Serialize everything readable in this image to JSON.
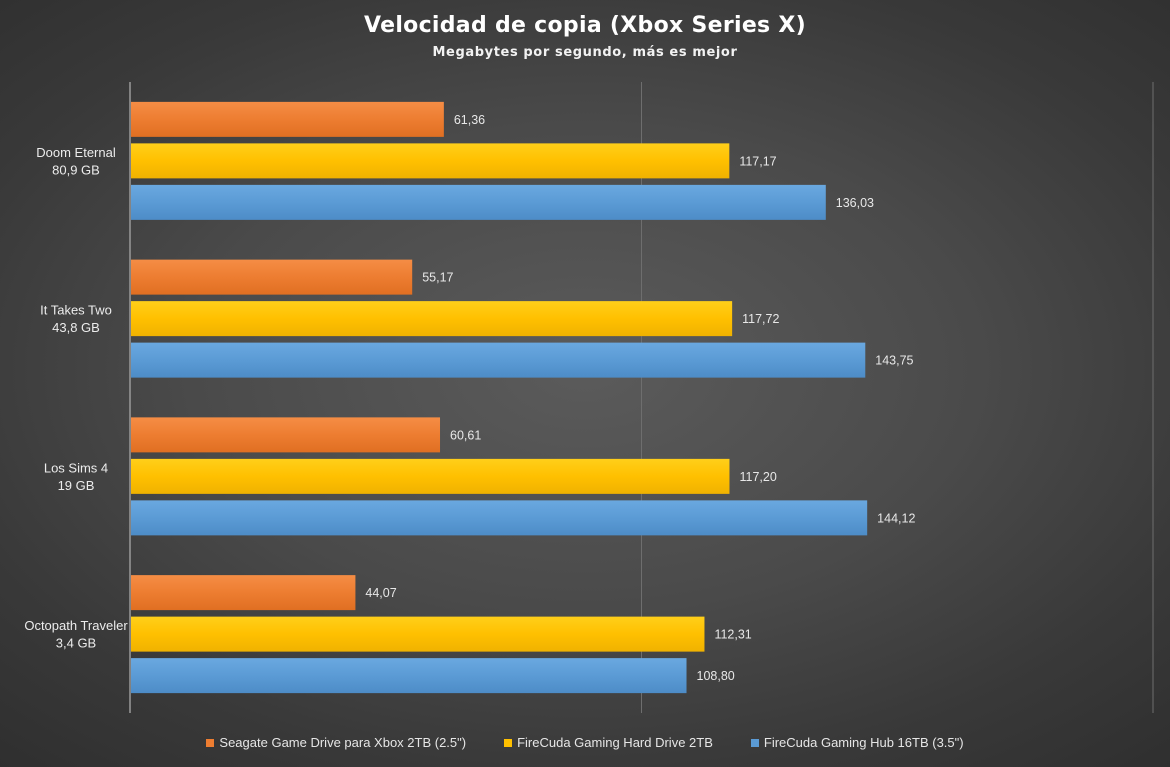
{
  "chart_data": {
    "type": "bar",
    "orientation": "horizontal",
    "title": "Velocidad de copia (Xbox Series X)",
    "subtitle": "Megabytes por segundo, más es mejor",
    "categories": [
      {
        "name": "Doom Eternal",
        "size": "80,9 GB"
      },
      {
        "name": "It Takes Two",
        "size": "43,8 GB"
      },
      {
        "name": "Los Sims 4",
        "size": "19 GB"
      },
      {
        "name": "Octopath Traveler",
        "size": "3,4 GB"
      }
    ],
    "series": [
      {
        "name": "Seagate Game Drive para Xbox 2TB (2.5\")",
        "color": "#ed7d31",
        "values": [
          61.36,
          55.17,
          60.61,
          44.07
        ],
        "labels": [
          "61,36",
          "55,17",
          "60,61",
          "44,07"
        ]
      },
      {
        "name": "FireCuda Gaming Hard Drive 2TB",
        "color": "#ffc000",
        "values": [
          117.17,
          117.72,
          117.2,
          112.31
        ],
        "labels": [
          "117,17",
          "117,72",
          "117,20",
          "112,31"
        ]
      },
      {
        "name": "FireCuda Gaming Hub 16TB (3.5\")",
        "color": "#5b9bd5",
        "values": [
          136.03,
          143.75,
          144.12,
          108.8
        ],
        "labels": [
          "136,03",
          "143,75",
          "144,12",
          "108,80"
        ]
      }
    ],
    "xlim": [
      0,
      200
    ],
    "gridlines": [
      100,
      200
    ],
    "grid": true,
    "legend_position": "bottom"
  }
}
